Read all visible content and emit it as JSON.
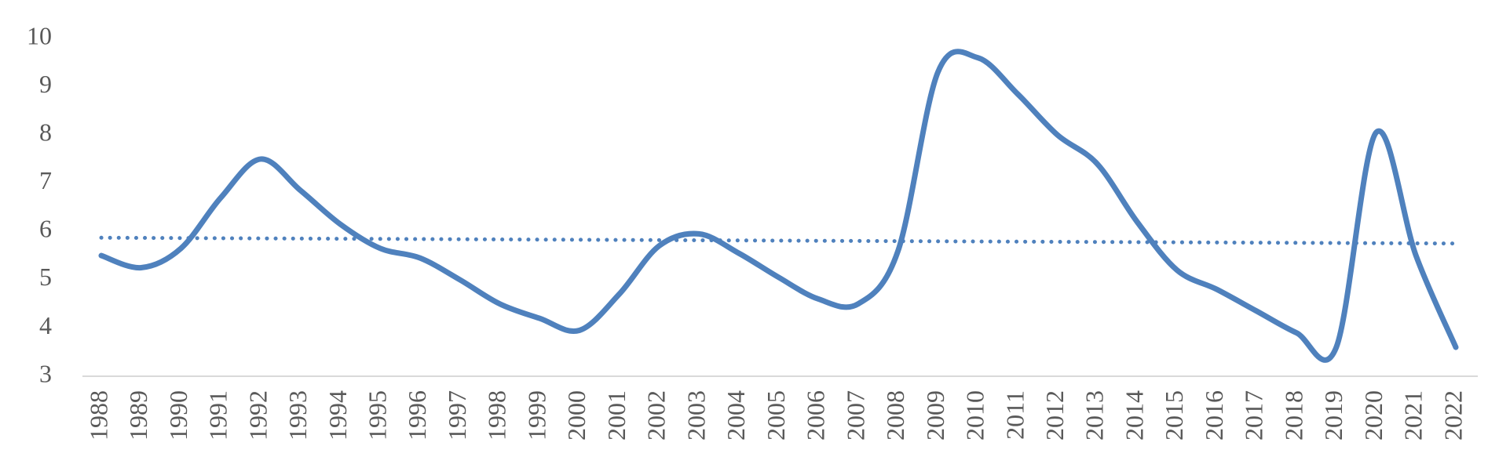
{
  "chart_data": {
    "type": "line",
    "categories": [
      "1988",
      "1989",
      "1990",
      "1991",
      "1992",
      "1993",
      "1994",
      "1995",
      "1996",
      "1997",
      "1998",
      "1999",
      "2000",
      "2001",
      "2002",
      "2003",
      "2004",
      "2005",
      "2006",
      "2007",
      "2008",
      "2009",
      "2010",
      "2011",
      "2012",
      "2013",
      "2014",
      "2015",
      "2016",
      "2017",
      "2018",
      "2019",
      "2020",
      "2021",
      "2022"
    ],
    "series": [
      {
        "color": "#4f81bd",
        "values": [
          5.5,
          5.25,
          5.65,
          6.7,
          7.5,
          6.85,
          6.15,
          5.65,
          5.45,
          5.0,
          4.5,
          4.2,
          3.95,
          4.7,
          5.7,
          5.95,
          5.55,
          5.05,
          4.6,
          4.5,
          5.6,
          9.3,
          9.6,
          8.85,
          8.0,
          7.4,
          6.2,
          5.2,
          4.8,
          4.35,
          3.9,
          3.6,
          8.05,
          5.5,
          3.6
        ]
      }
    ],
    "trendline": {
      "color": "#4f81bd",
      "style": "dotted",
      "values": [
        5.87,
        5.75
      ]
    },
    "ylim": [
      3,
      10
    ],
    "yticks": [
      3,
      4,
      5,
      6,
      7,
      8,
      9,
      10
    ],
    "grid": false
  }
}
